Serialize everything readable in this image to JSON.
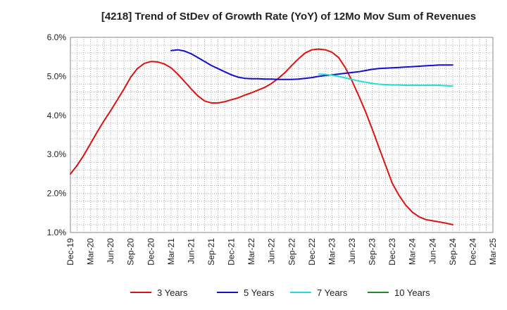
{
  "chart_data": {
    "type": "line",
    "title": "[4218]  Trend of StDev of Growth Rate (YoY) of 12Mo Mov Sum of Revenues",
    "xlabel": "",
    "ylabel": "",
    "x_ticks": [
      "Dec-19",
      "Mar-20",
      "Jun-20",
      "Sep-20",
      "Dec-20",
      "Mar-21",
      "Jun-21",
      "Sep-21",
      "Dec-21",
      "Mar-22",
      "Jun-22",
      "Sep-22",
      "Dec-22",
      "Mar-23",
      "Jun-23",
      "Sep-23",
      "Dec-23",
      "Mar-24",
      "Jun-24",
      "Sep-24",
      "Dec-24",
      "Mar-25"
    ],
    "y_ticks": [
      "1.0%",
      "2.0%",
      "3.0%",
      "4.0%",
      "5.0%",
      "6.0%"
    ],
    "ylim": [
      1.0,
      6.0
    ],
    "grid": true,
    "legend_position": "bottom",
    "series": [
      {
        "name": "3 Years",
        "color": "#dd1111",
        "values": [
          2.5,
          2.72,
          2.98,
          3.28,
          3.58,
          3.86,
          4.12,
          4.4,
          4.68,
          4.98,
          5.2,
          5.33,
          5.38,
          5.37,
          5.32,
          5.22,
          5.06,
          4.87,
          4.68,
          4.5,
          4.37,
          4.32,
          4.32,
          4.35,
          4.4,
          4.45,
          4.52,
          4.58,
          4.65,
          4.72,
          4.82,
          4.95,
          5.1,
          5.28,
          5.45,
          5.6,
          5.68,
          5.7,
          5.68,
          5.62,
          5.48,
          5.22,
          4.88,
          4.5,
          4.1,
          3.65,
          3.18,
          2.72,
          2.26,
          1.95,
          1.7,
          1.52,
          1.4,
          1.33,
          1.3,
          1.27,
          1.24,
          1.2
        ]
      },
      {
        "name": "5 Years",
        "color": "#1111cc",
        "values": [
          null,
          null,
          null,
          null,
          null,
          null,
          null,
          null,
          null,
          null,
          null,
          null,
          null,
          null,
          null,
          5.66,
          5.68,
          5.65,
          5.58,
          5.48,
          5.38,
          5.28,
          5.2,
          5.12,
          5.04,
          4.98,
          4.95,
          4.94,
          4.94,
          4.93,
          4.93,
          4.92,
          4.92,
          4.92,
          4.93,
          4.95,
          4.97,
          5.0,
          5.02,
          5.04,
          5.06,
          5.08,
          5.1,
          5.12,
          5.15,
          5.18,
          5.2,
          5.21,
          5.22,
          5.23,
          5.24,
          5.25,
          5.26,
          5.27,
          5.28,
          5.29,
          5.29,
          5.29
        ]
      },
      {
        "name": "7 Years",
        "color": "#22dddd",
        "values": [
          null,
          null,
          null,
          null,
          null,
          null,
          null,
          null,
          null,
          null,
          null,
          null,
          null,
          null,
          null,
          null,
          null,
          null,
          null,
          null,
          null,
          null,
          null,
          null,
          null,
          null,
          null,
          null,
          null,
          null,
          null,
          null,
          null,
          null,
          null,
          null,
          null,
          5.06,
          5.05,
          5.03,
          5.0,
          4.96,
          4.92,
          4.88,
          4.85,
          4.82,
          4.8,
          4.79,
          4.78,
          4.78,
          4.77,
          4.77,
          4.77,
          4.77,
          4.77,
          4.77,
          4.76,
          4.75
        ]
      },
      {
        "name": "10 Years",
        "color": "#228822",
        "values": []
      }
    ]
  }
}
